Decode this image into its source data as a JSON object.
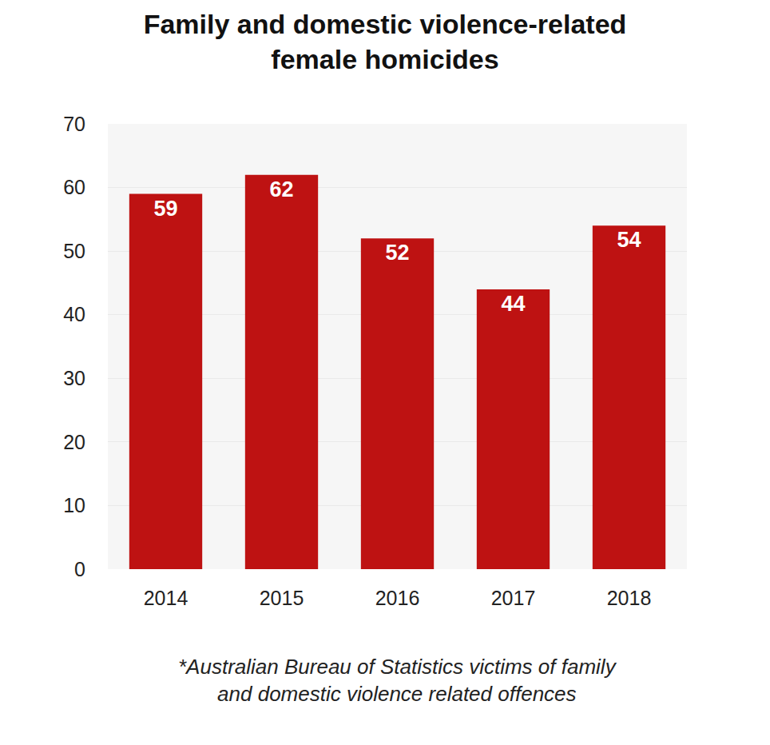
{
  "chart_data": {
    "type": "bar",
    "title": "Family and domestic violence-related female homicides",
    "annotations": [
      "*Australian Bureau of Statistics victims of family and domestic violence related offences"
    ],
    "categories": [
      "2014",
      "2015",
      "2016",
      "2017",
      "2018"
    ],
    "values": [
      59,
      62,
      52,
      44,
      54
    ],
    "color": "#be1212",
    "ylim": [
      0,
      70
    ],
    "yticks": [
      0,
      10,
      20,
      30,
      40,
      50,
      60,
      70
    ],
    "grid": true,
    "data_labels": true
  }
}
